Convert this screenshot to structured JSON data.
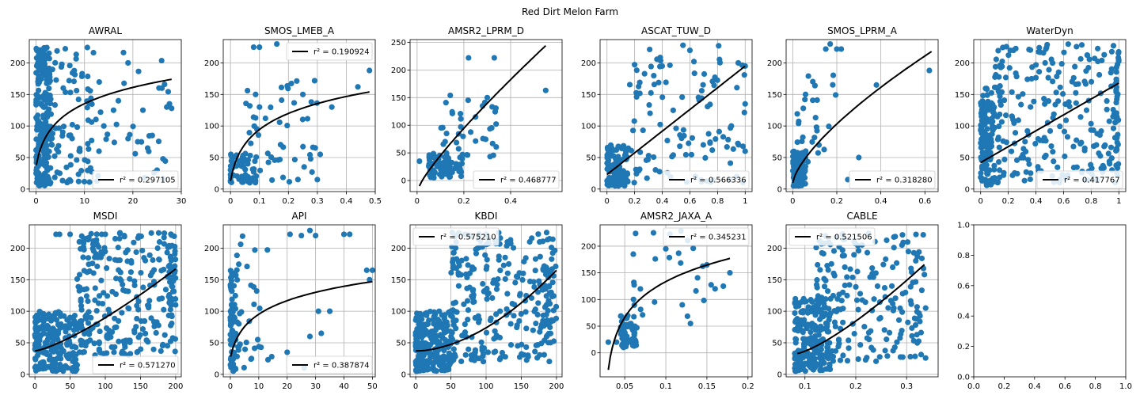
{
  "figure": {
    "title": "Red Dirt Melon Farm"
  },
  "chart_data": [
    {
      "name": "AWRAL",
      "type": "scatter",
      "title": "AWRAL",
      "xlim": [
        -1.4,
        30
      ],
      "ylim": [
        -4,
        237
      ],
      "xticks": [
        0,
        10,
        20,
        30
      ],
      "yticks": [
        0,
        50,
        100,
        150,
        200
      ],
      "r2_label": "r² = 0.297105",
      "legend": "lower-right",
      "fit": {
        "kind": "log",
        "x0": 0.05,
        "x1": 28,
        "y0": 38,
        "y1": 174
      },
      "clusters": [
        {
          "x": [
            0,
            3
          ],
          "y": [
            5,
            225
          ],
          "n": 220
        },
        {
          "x": [
            2,
            12
          ],
          "y": [
            10,
            225
          ],
          "n": 90
        },
        {
          "x": [
            10,
            28
          ],
          "y": [
            10,
            225
          ],
          "n": 35
        }
      ],
      "points": [
        [
          16,
          125
        ],
        [
          19,
          200
        ],
        [
          21,
          75
        ],
        [
          24,
          85
        ],
        [
          26,
          160
        ],
        [
          27,
          130
        ],
        [
          28,
          128
        ],
        [
          25,
          30
        ],
        [
          19,
          80
        ],
        [
          17,
          140
        ],
        [
          14,
          100
        ],
        [
          13,
          60
        ]
      ]
    },
    {
      "name": "SMOS_LMEB_A",
      "type": "scatter",
      "title": "SMOS_LMEB_A",
      "xlim": [
        -0.025,
        0.5
      ],
      "ylim": [
        -4,
        237
      ],
      "xticks": [
        0.0,
        0.1,
        0.2,
        0.3,
        0.4,
        0.5
      ],
      "yticks": [
        0,
        50,
        100,
        150,
        200
      ],
      "r2_label": "r² = 0.190924",
      "legend": "upper-right",
      "fit": {
        "kind": "log",
        "x0": 0.0,
        "x1": 0.48,
        "y0": 13,
        "y1": 154
      },
      "clusters": [
        {
          "x": [
            0,
            0.1
          ],
          "y": [
            10,
            60
          ],
          "n": 60
        },
        {
          "x": [
            0.05,
            0.3
          ],
          "y": [
            10,
            180
          ],
          "n": 55
        }
      ],
      "points": [
        [
          0.08,
          225
        ],
        [
          0.1,
          225
        ],
        [
          0.16,
          230
        ],
        [
          0.31,
          55
        ],
        [
          0.3,
          15
        ],
        [
          0.44,
          162
        ],
        [
          0.48,
          188
        ],
        [
          0.25,
          150
        ],
        [
          0.35,
          130
        ]
      ]
    },
    {
      "name": "AMSR2_LPRM_D",
      "type": "scatter",
      "title": "AMSR2_LPRM_D",
      "xlim": [
        -0.03,
        0.62
      ],
      "ylim": [
        -20,
        255
      ],
      "xticks": [
        0.0,
        0.2,
        0.4
      ],
      "yticks": [
        0,
        50,
        100,
        150,
        200,
        250
      ],
      "r2_label": "r² = 0.468777",
      "legend": "lower-right",
      "fit": {
        "kind": "pow",
        "x0": 0.01,
        "x1": 0.55,
        "y0": -10,
        "y1": 244,
        "p": 0.85
      },
      "clusters": [
        {
          "x": [
            0.05,
            0.2
          ],
          "y": [
            5,
            50
          ],
          "n": 80
        },
        {
          "x": [
            0.1,
            0.35
          ],
          "y": [
            40,
            160
          ],
          "n": 35
        }
      ],
      "points": [
        [
          0.22,
          222
        ],
        [
          0.33,
          222
        ],
        [
          0.55,
          163
        ],
        [
          0.3,
          150
        ],
        [
          0.28,
          135
        ],
        [
          0.25,
          115
        ],
        [
          0.01,
          35
        ]
      ]
    },
    {
      "name": "ASCAT_TUW_D",
      "type": "scatter",
      "title": "ASCAT_TUW_D",
      "xlim": [
        -0.05,
        1.05
      ],
      "ylim": [
        -4,
        237
      ],
      "xticks": [
        0.0,
        0.2,
        0.4,
        0.6,
        0.8,
        1.0
      ],
      "yticks": [
        0,
        50,
        100,
        150,
        200
      ],
      "r2_label": "r² = 0.566336",
      "legend": "lower-right",
      "fit": {
        "kind": "pow",
        "x0": 0.0,
        "x1": 1.0,
        "y0": 23,
        "y1": 195,
        "p": 1.0
      },
      "clusters": [
        {
          "x": [
            0,
            0.15
          ],
          "y": [
            5,
            70
          ],
          "n": 110
        },
        {
          "x": [
            0.15,
            1.0
          ],
          "y": [
            10,
            230
          ],
          "n": 110
        }
      ],
      "points": [
        [
          0.55,
          228
        ],
        [
          0.6,
          220
        ],
        [
          0.95,
          200
        ],
        [
          1.0,
          195
        ],
        [
          1.0,
          135
        ],
        [
          1.0,
          60
        ],
        [
          0.9,
          100
        ]
      ]
    },
    {
      "name": "SMOS_LPRM_A",
      "type": "scatter",
      "title": "SMOS_LPRM_A",
      "xlim": [
        -0.03,
        0.66
      ],
      "ylim": [
        -4,
        237
      ],
      "xticks": [
        0.0,
        0.2,
        0.4,
        0.6
      ],
      "yticks": [
        0,
        50,
        100,
        150,
        200
      ],
      "r2_label": "r² = 0.318280",
      "legend": "lower-right",
      "fit": {
        "kind": "pow",
        "x0": 0.0,
        "x1": 0.63,
        "y0": 10,
        "y1": 218,
        "p": 0.7
      },
      "clusters": [
        {
          "x": [
            0,
            0.06
          ],
          "y": [
            5,
            60
          ],
          "n": 80
        },
        {
          "x": [
            0.02,
            0.2
          ],
          "y": [
            40,
            190
          ],
          "n": 30
        }
      ],
      "points": [
        [
          0.15,
          222
        ],
        [
          0.17,
          230
        ],
        [
          0.2,
          222
        ],
        [
          0.22,
          222
        ],
        [
          0.38,
          165
        ],
        [
          0.62,
          188
        ],
        [
          0.3,
          50
        ],
        [
          0.25,
          15
        ]
      ]
    },
    {
      "name": "WaterDyn",
      "type": "scatter",
      "title": "WaterDyn",
      "xlim": [
        -0.05,
        1.05
      ],
      "ylim": [
        -4,
        237
      ],
      "xticks": [
        0.0,
        0.2,
        0.4,
        0.6,
        0.8,
        1.0
      ],
      "yticks": [
        0,
        50,
        100,
        150,
        200
      ],
      "r2_label": "r² = 0.417767",
      "legend": "lower-right",
      "fit": {
        "kind": "pow",
        "x0": 0.0,
        "x1": 1.0,
        "y0": 42,
        "y1": 168,
        "p": 1.0
      },
      "clusters": [
        {
          "x": [
            0,
            0.1
          ],
          "y": [
            5,
            160
          ],
          "n": 140
        },
        {
          "x": [
            0.1,
            1.0
          ],
          "y": [
            10,
            230
          ],
          "n": 240
        },
        {
          "x": [
            0.98,
            1.0
          ],
          "y": [
            20,
            225
          ],
          "n": 30
        }
      ],
      "points": []
    },
    {
      "name": "MSDI",
      "type": "scatter",
      "title": "MSDI",
      "xlim": [
        -8,
        208
      ],
      "ylim": [
        -4,
        237
      ],
      "xticks": [
        0,
        50,
        100,
        150,
        200
      ],
      "yticks": [
        0,
        50,
        100,
        150,
        200
      ],
      "r2_label": "r² = 0.571270",
      "legend": "lower-right",
      "fit": {
        "kind": "pow",
        "x0": 0,
        "x1": 200,
        "y0": 37,
        "y1": 167,
        "p": 1.3
      },
      "clusters": [
        {
          "x": [
            0,
            60
          ],
          "y": [
            5,
            100
          ],
          "n": 220
        },
        {
          "x": [
            60,
            200
          ],
          "y": [
            30,
            225
          ],
          "n": 260
        },
        {
          "x": [
            190,
            200
          ],
          "y": [
            90,
            225
          ],
          "n": 40
        }
      ],
      "points": [
        [
          30,
          222
        ],
        [
          35,
          222
        ],
        [
          50,
          222
        ],
        [
          95,
          222
        ],
        [
          100,
          222
        ]
      ]
    },
    {
      "name": "API",
      "type": "scatter",
      "title": "API",
      "xlim": [
        -2.5,
        51
      ],
      "ylim": [
        -4,
        237
      ],
      "xticks": [
        0,
        10,
        20,
        30,
        40,
        50
      ],
      "yticks": [
        0,
        50,
        100,
        150,
        200
      ],
      "r2_label": "r² = 0.387874",
      "legend": "lower-right",
      "fit": {
        "kind": "log",
        "x0": 0.1,
        "x1": 50,
        "y0": 28,
        "y1": 147,
        "p": 1.0
      },
      "clusters": [
        {
          "x": [
            0,
            2
          ],
          "y": [
            5,
            170
          ],
          "n": 70
        },
        {
          "x": [
            2,
            15
          ],
          "y": [
            10,
            220
          ],
          "n": 35
        }
      ],
      "points": [
        [
          21,
          222
        ],
        [
          25,
          220
        ],
        [
          28,
          228
        ],
        [
          30,
          220
        ],
        [
          40,
          222
        ],
        [
          42,
          222
        ],
        [
          48,
          165
        ],
        [
          50,
          165
        ],
        [
          49,
          150
        ],
        [
          35,
          100
        ],
        [
          28,
          60
        ],
        [
          32,
          65
        ],
        [
          20,
          35
        ],
        [
          26,
          10
        ],
        [
          31,
          100
        ]
      ]
    },
    {
      "name": "KBDI",
      "type": "scatter",
      "title": "KBDI",
      "xlim": [
        -8,
        208
      ],
      "ylim": [
        -4,
        237
      ],
      "xticks": [
        0,
        50,
        100,
        150,
        200
      ],
      "yticks": [
        0,
        50,
        100,
        150,
        200
      ],
      "r2_label": "r² = 0.575210",
      "legend": "upper-left",
      "fit": {
        "kind": "pow",
        "x0": 0,
        "x1": 200,
        "y0": 37,
        "y1": 165,
        "p": 1.8
      },
      "clusters": [
        {
          "x": [
            0,
            50
          ],
          "y": [
            5,
            100
          ],
          "n": 260
        },
        {
          "x": [
            50,
            200
          ],
          "y": [
            20,
            225
          ],
          "n": 260
        },
        {
          "x": [
            180,
            200
          ],
          "y": [
            50,
            225
          ],
          "n": 40
        }
      ],
      "points": [
        [
          60,
          222
        ],
        [
          70,
          222
        ],
        [
          90,
          222
        ],
        [
          100,
          222
        ]
      ]
    },
    {
      "name": "AMSR2_JAXA_A",
      "type": "scatter",
      "title": "AMSR2_JAXA_A",
      "xlim": [
        0.02,
        0.205
      ],
      "ylim": [
        -45,
        240
      ],
      "xticks": [
        0.05,
        0.1,
        0.15,
        0.2
      ],
      "yticks": [
        0,
        50,
        100,
        150,
        200
      ],
      "r2_label": "r² = 0.345231",
      "legend": "upper-right",
      "fit": {
        "kind": "log",
        "x0": 0.03,
        "x1": 0.178,
        "y0": -32,
        "y1": 177,
        "p": 1.0
      },
      "clusters": [
        {
          "x": [
            0.045,
            0.065
          ],
          "y": [
            10,
            70
          ],
          "n": 50
        },
        {
          "x": [
            0.06,
            0.17
          ],
          "y": [
            50,
            230
          ],
          "n": 25
        }
      ],
      "points": [
        [
          0.03,
          20
        ],
        [
          0.04,
          20
        ],
        [
          0.12,
          90
        ],
        [
          0.13,
          55
        ],
        [
          0.16,
          120
        ],
        [
          0.17,
          125
        ],
        [
          0.178,
          150
        ],
        [
          0.15,
          165
        ],
        [
          0.1,
          195
        ],
        [
          0.085,
          225
        ]
      ]
    },
    {
      "name": "CABLE",
      "type": "scatter",
      "title": "CABLE",
      "xlim": [
        0.063,
        0.362
      ],
      "ylim": [
        -4,
        237
      ],
      "xticks": [
        0.1,
        0.2,
        0.3
      ],
      "yticks": [
        0,
        50,
        100,
        150,
        200
      ],
      "r2_label": "r² = 0.521506",
      "legend": "upper-left",
      "fit": {
        "kind": "pow",
        "x0": 0.085,
        "x1": 0.335,
        "y0": 33,
        "y1": 174,
        "p": 1.3
      },
      "clusters": [
        {
          "x": [
            0.08,
            0.15
          ],
          "y": [
            5,
            120
          ],
          "n": 200
        },
        {
          "x": [
            0.12,
            0.34
          ],
          "y": [
            20,
            225
          ],
          "n": 220
        }
      ],
      "points": []
    },
    {
      "name": "empty",
      "type": "scatter",
      "title": "",
      "xlim": [
        0,
        1
      ],
      "ylim": [
        0,
        1
      ],
      "xticks": [
        0.0,
        0.2,
        0.4,
        0.6,
        0.8,
        1.0
      ],
      "yticks": [
        0.0,
        0.2,
        0.4,
        0.6,
        0.8,
        1.0
      ],
      "r2_label": "",
      "legend": "none",
      "tick_format": "fixed1",
      "fit": null,
      "clusters": [],
      "points": []
    }
  ]
}
